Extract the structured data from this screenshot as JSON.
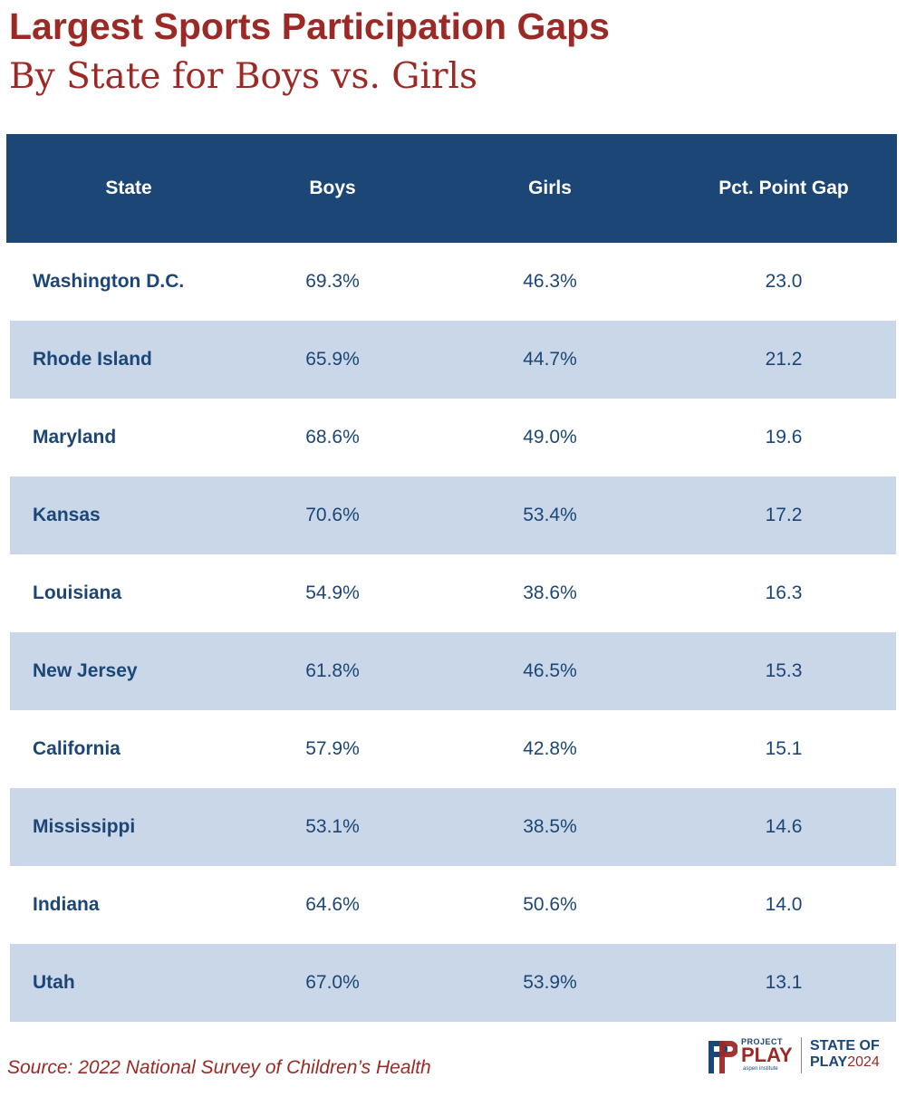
{
  "title": "Largest Sports Participation Gaps",
  "subtitle": "By State for Boys vs. Girls",
  "source": "Source: 2022 National Survey of Children’s Health",
  "colors": {
    "accent_red": "#9b2a26",
    "header_blue": "#1c4676",
    "row_shade": "#c9d7e8",
    "text_blue": "#1c4676"
  },
  "logo": {
    "project": "PROJECT",
    "play": "PLAY",
    "aspen": "aspen institute",
    "state_of": "STATE OF",
    "play2": "PLAY",
    "year": "2024"
  },
  "chart_data": {
    "type": "table",
    "columns": [
      "State",
      "Boys",
      "Girls",
      "Pct. Point Gap"
    ],
    "rows": [
      {
        "state": "Washington D.C.",
        "boys": "69.3%",
        "girls": "46.3%",
        "gap": "23.0"
      },
      {
        "state": "Rhode Island",
        "boys": "65.9%",
        "girls": "44.7%",
        "gap": "21.2"
      },
      {
        "state": "Maryland",
        "boys": "68.6%",
        "girls": "49.0%",
        "gap": "19.6"
      },
      {
        "state": "Kansas",
        "boys": "70.6%",
        "girls": "53.4%",
        "gap": "17.2"
      },
      {
        "state": "Louisiana",
        "boys": "54.9%",
        "girls": "38.6%",
        "gap": "16.3"
      },
      {
        "state": "New Jersey",
        "boys": "61.8%",
        "girls": "46.5%",
        "gap": "15.3"
      },
      {
        "state": "California",
        "boys": "57.9%",
        "girls": "42.8%",
        "gap": "15.1"
      },
      {
        "state": "Mississippi",
        "boys": "53.1%",
        "girls": "38.5%",
        "gap": "14.6"
      },
      {
        "state": "Indiana",
        "boys": "64.6%",
        "girls": "50.6%",
        "gap": "14.0"
      },
      {
        "state": "Utah",
        "boys": "67.0%",
        "girls": "53.9%",
        "gap": "13.1"
      }
    ]
  }
}
